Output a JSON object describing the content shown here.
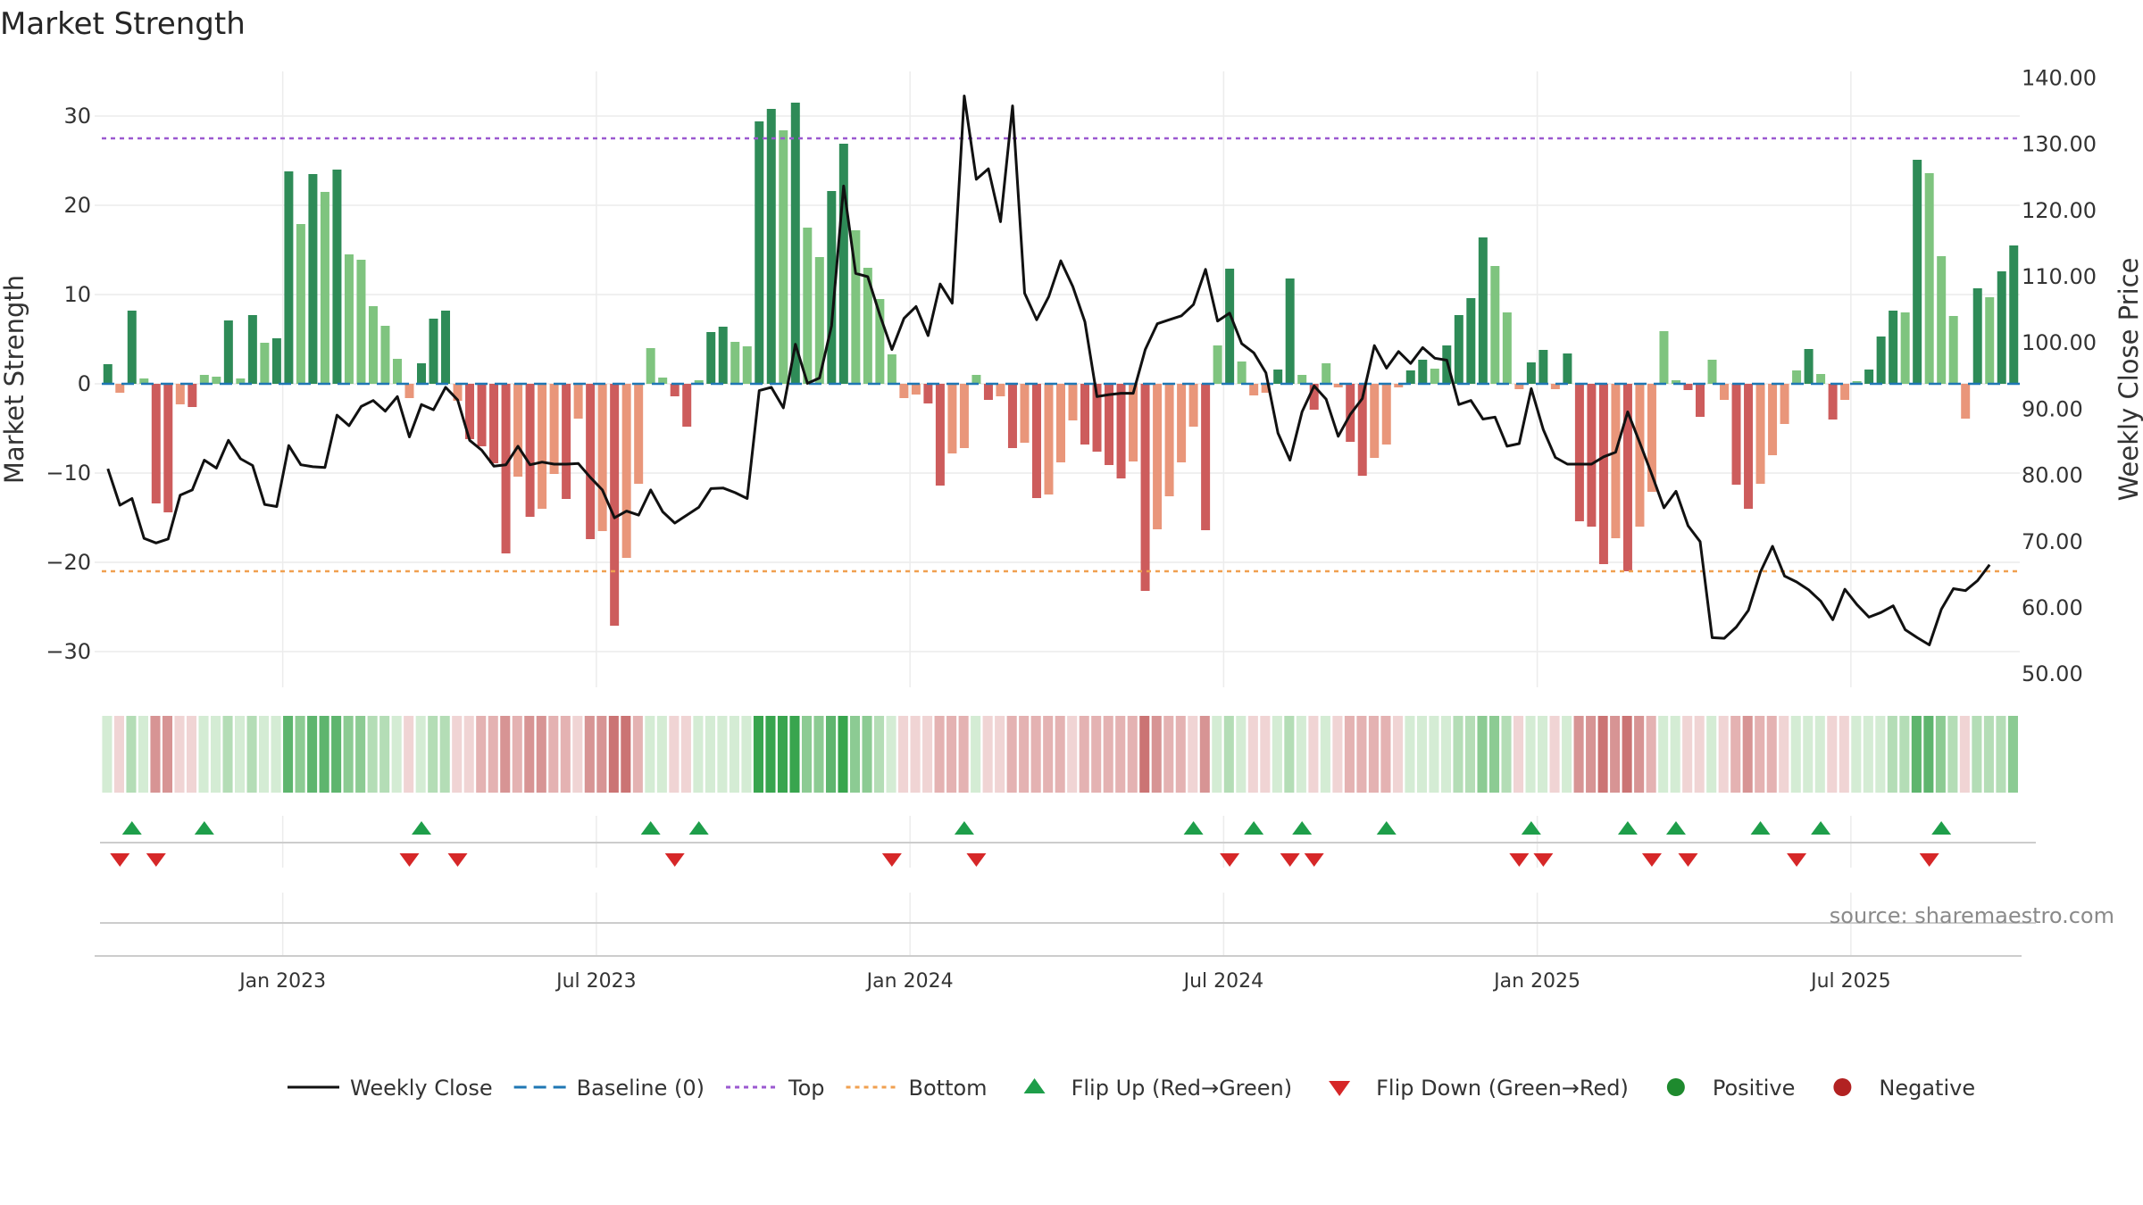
{
  "chart_data": {
    "type": "bar",
    "title": "Market Strength",
    "source": "source: sharemaestro.com",
    "y_left": {
      "label": "Market Strength",
      "ylim": [
        -34,
        35
      ],
      "ticks": [
        30,
        20,
        10,
        0,
        -10,
        -20,
        -30
      ],
      "tick_labels": [
        "30",
        "20",
        "10",
        "0",
        "−10",
        "−20",
        "−30"
      ]
    },
    "y_right": {
      "label": "Weekly Close Price",
      "ylim": [
        48,
        141
      ],
      "ticks": [
        140,
        130,
        120,
        110,
        100,
        90,
        80,
        70,
        60,
        50
      ],
      "tick_labels": [
        "140.00",
        "130.00",
        "120.00",
        "110.00",
        "100.00",
        "90.00",
        "80.00",
        "70.00",
        "60.00",
        "50.00"
      ]
    },
    "x_ticks": [
      {
        "week": 15,
        "label": "Jan 2023"
      },
      {
        "week": 41,
        "label": "Jul 2023"
      },
      {
        "week": 67,
        "label": "Jan 2024"
      },
      {
        "week": 93,
        "label": "Jul 2024"
      },
      {
        "week": 119,
        "label": "Jan 2025"
      },
      {
        "week": 145,
        "label": "Jul 2025"
      }
    ],
    "top_level": 27.5,
    "bottom_level": -21,
    "strength": [
      2.2,
      -1,
      8.2,
      0.6,
      -13.4,
      -14.4,
      -2.3,
      -2.6,
      1,
      0.8,
      7.1,
      0.6,
      7.7,
      4.6,
      5.1,
      23.8,
      17.9,
      23.5,
      21.5,
      24,
      14.5,
      13.9,
      8.7,
      6.5,
      2.8,
      -1.6,
      2.3,
      7.3,
      8.2,
      -1.9,
      -6.2,
      -7,
      -8.9,
      -19,
      -10.4,
      -14.9,
      -14,
      -10.1,
      -12.9,
      -3.9,
      -17.4,
      -16.5,
      -27.1,
      -19.5,
      -11.2,
      4,
      0.7,
      -1.4,
      -4.8,
      0.4,
      5.8,
      6.4,
      4.7,
      4.2,
      29.4,
      30.8,
      28.4,
      31.5,
      17.5,
      14.2,
      21.6,
      26.9,
      17.2,
      13,
      9.5,
      3.3,
      -1.6,
      -1.2,
      -2.2,
      -11.4,
      -7.8,
      -7.2,
      1,
      -1.8,
      -1.4,
      -7.2,
      -6.6,
      -12.8,
      -12.4,
      -8.8,
      -4.1,
      -6.8,
      -7.6,
      -9.1,
      -10.6,
      -8.7,
      -23.2,
      -16.3,
      -12.6,
      -8.8,
      -4.8,
      -16.4,
      4.3,
      12.9,
      2.5,
      -1.3,
      -1,
      1.6,
      11.8,
      1,
      -2.9,
      2.3,
      -0.4,
      -6.5,
      -10.3,
      -8.3,
      -6.8,
      -0.4,
      1.5,
      2.7,
      1.7,
      4.3,
      7.7,
      9.6,
      16.4,
      13.2,
      8,
      -0.6,
      2.4,
      3.8,
      -0.6,
      3.4,
      -15.4,
      -16,
      -20.2,
      -17.3,
      -21,
      -16,
      -12.1,
      5.9,
      0.4,
      -0.7,
      -3.7,
      2.7,
      -1.8,
      -11.3,
      -14,
      -11.2,
      -8,
      -4.5,
      1.5,
      3.9,
      1.1,
      -4,
      -1.8,
      0.3,
      1.6,
      5.3,
      8.2,
      8,
      25.1,
      23.6,
      14.3,
      7.6,
      -3.9,
      10.7,
      9.7,
      12.6,
      15.5
    ],
    "weekly_close": [
      81,
      75.5,
      76.5,
      70.5,
      69.8,
      70.4,
      77,
      77.8,
      82.3,
      81.1,
      85.3,
      82.5,
      81.5,
      75.6,
      75.3,
      84.5,
      81.6,
      81.3,
      81.2,
      89.1,
      87.5,
      90.4,
      91.3,
      89.7,
      91.9,
      85.8,
      90.7,
      89.9,
      93.3,
      91.4,
      85.3,
      83.8,
      81.4,
      81.6,
      84.4,
      81.6,
      82,
      81.7,
      81.7,
      81.8,
      79.7,
      77.8,
      73.6,
      74.6,
      74,
      77.8,
      74.5,
      72.8,
      74,
      75.2,
      78,
      78.1,
      77.4,
      76.5,
      92.8,
      93.3,
      90.2,
      99.8,
      93.9,
      94.7,
      102.6,
      123.7,
      110.5,
      110,
      104.2,
      99,
      103.7,
      105.5,
      101.1,
      108.9,
      106,
      137.3,
      124.7,
      126.3,
      118.3,
      135.8,
      107.5,
      103.5,
      107,
      112.4,
      108.5,
      103.2,
      91.9,
      92.2,
      92.4,
      92.4,
      99,
      102.9,
      103.5,
      104.1,
      105.8,
      111.1,
      103.3,
      104.5,
      99.9,
      98.5,
      95.5,
      86.4,
      82.3,
      89.6,
      93.5,
      91.5,
      85.9,
      89.2,
      91.6,
      99.6,
      96.2,
      98.7,
      96.9,
      99.3,
      97.7,
      97.4,
      90.7,
      91.3,
      88.5,
      88.8,
      84.4,
      84.8,
      93.1,
      86.9,
      82.7,
      81.7,
      81.7,
      81.7,
      82.8,
      83.5,
      89.6,
      84.9,
      80.1,
      75.1,
      77.6,
      72.4,
      70,
      55.5,
      55.4,
      57.1,
      59.6,
      65.4,
      69.3,
      64.8,
      63.9,
      62.7,
      61,
      58.2,
      62.8,
      60.5,
      58.6,
      59.3,
      60.3,
      56.7,
      55.5,
      54.4,
      59.8,
      62.9,
      62.6,
      64.1,
      66.5
    ],
    "flip_up_weeks": [
      2,
      8,
      26,
      45,
      49,
      71,
      90,
      95,
      99,
      106,
      118,
      126,
      130,
      137,
      142,
      152
    ],
    "flip_down_weeks": [
      1,
      4,
      25,
      29,
      47,
      65,
      72,
      93,
      98,
      100,
      117,
      119,
      128,
      131,
      140,
      151
    ],
    "legend": [
      {
        "type": "line",
        "color": "#111111",
        "label": "Weekly Close"
      },
      {
        "type": "dashed",
        "color": "#1f77b4",
        "label": "Baseline (0)"
      },
      {
        "type": "dotted",
        "color": "#9b59d0",
        "label": "Top"
      },
      {
        "type": "dotted",
        "color": "#f0a050",
        "label": "Bottom"
      },
      {
        "type": "tri-up",
        "color": "#1e9e4a",
        "label": "Flip Up (Red→Green)"
      },
      {
        "type": "tri-down",
        "color": "#d62728",
        "label": "Flip Down (Green→Red)"
      },
      {
        "type": "dot",
        "color": "#1e8a2e",
        "label": "Positive"
      },
      {
        "type": "dot",
        "color": "#b22222",
        "label": "Negative"
      }
    ],
    "colors": {
      "pos_strong": "#2e8b57",
      "pos_light": "#7fc47f",
      "neg_strong": "#cd5c5c",
      "neg_light": "#e9967a",
      "baseline": "#1f77b4",
      "top": "#9b59d0",
      "bottom": "#f0a050",
      "close_line": "#111111",
      "flip_up": "#1e9e4a",
      "flip_down": "#d62728"
    }
  }
}
